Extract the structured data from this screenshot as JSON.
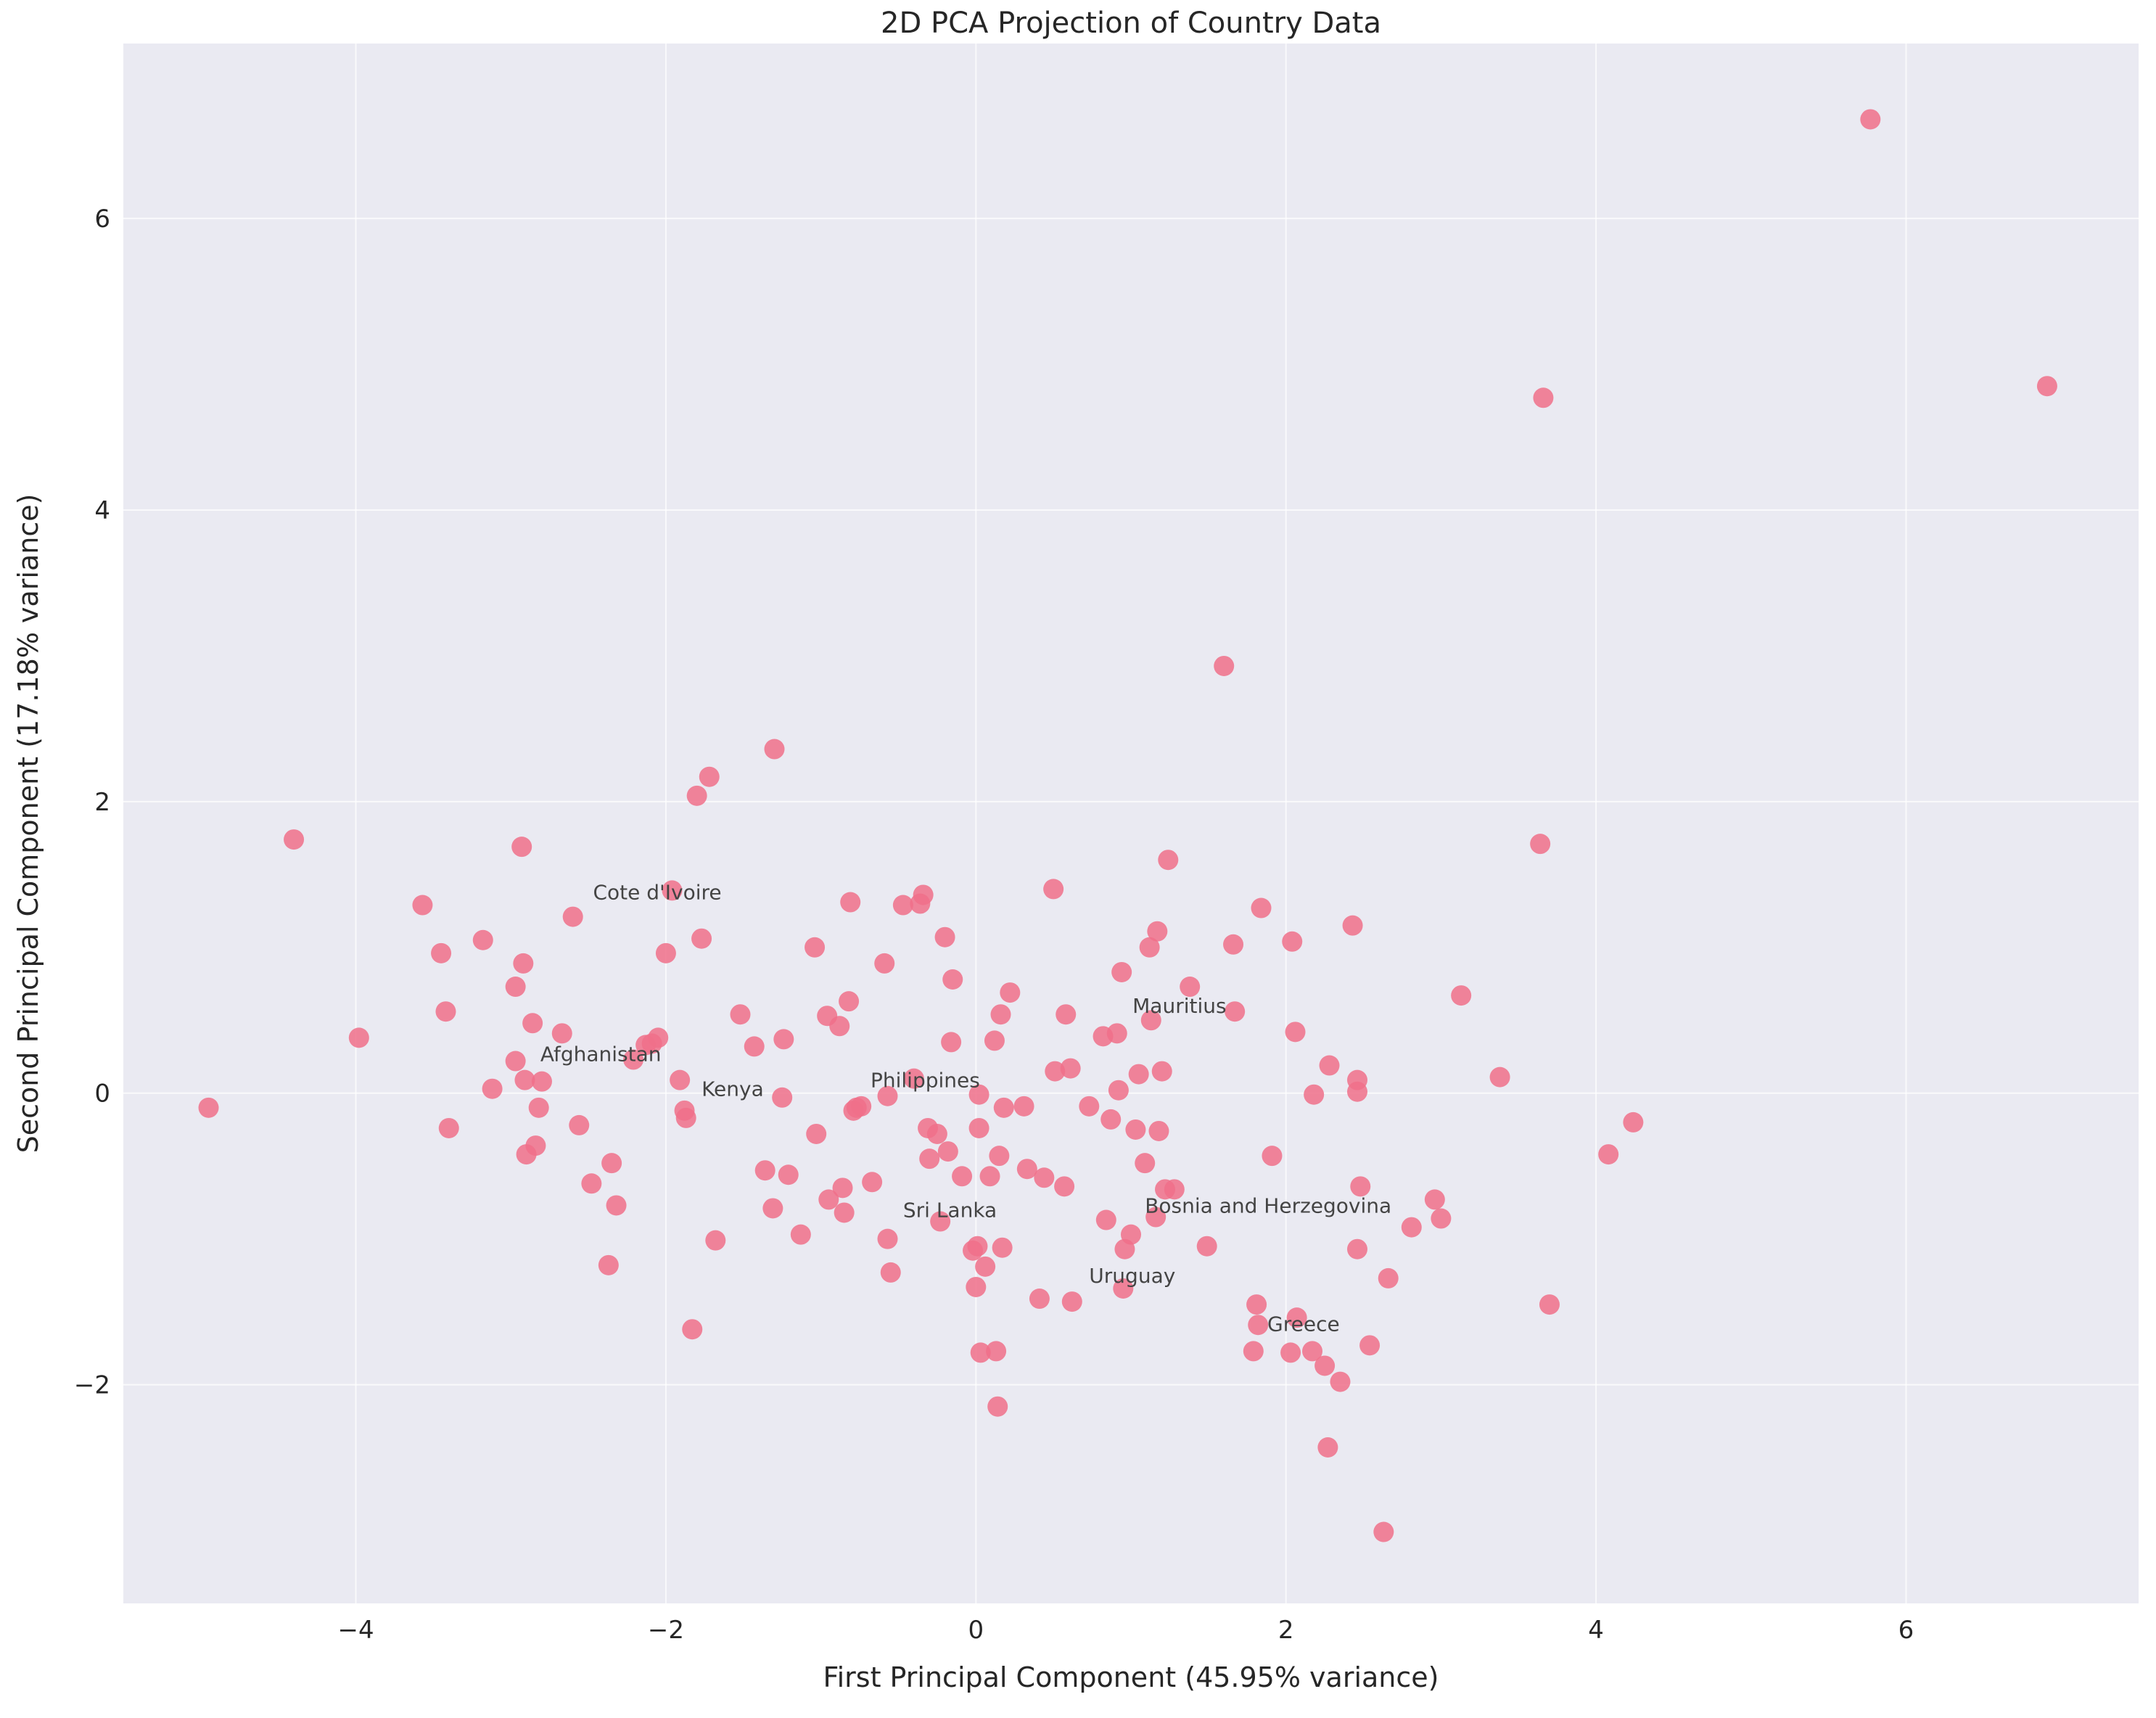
{
  "chart_data": {
    "type": "scatter",
    "title": "2D PCA Projection of Country Data",
    "xlabel": "First Principal Component (45.95% variance)",
    "ylabel": "Second Principal Component (17.18% variance)",
    "xlim": [
      -5.5,
      7.5
    ],
    "ylim": [
      -3.5,
      7.2
    ],
    "xticks": [
      -4,
      -2,
      0,
      2,
      4,
      6
    ],
    "yticks": [
      -2,
      0,
      2,
      4,
      6
    ],
    "grid": true,
    "marker_color": "#f0708a",
    "background": "#eaeaf2",
    "points": [
      [
        -4.95,
        -0.1
      ],
      [
        -4.4,
        1.74
      ],
      [
        -3.98,
        0.38
      ],
      [
        -3.57,
        1.29
      ],
      [
        -3.45,
        0.96
      ],
      [
        -3.42,
        0.56
      ],
      [
        -3.4,
        -0.24
      ],
      [
        -3.18,
        1.05
      ],
      [
        -3.12,
        0.03
      ],
      [
        -2.97,
        0.22
      ],
      [
        -2.97,
        0.73
      ],
      [
        -2.93,
        1.69
      ],
      [
        -2.92,
        0.89
      ],
      [
        -2.91,
        0.09
      ],
      [
        -2.9,
        -0.42
      ],
      [
        -2.86,
        0.48
      ],
      [
        -2.84,
        -0.36
      ],
      [
        -2.82,
        -0.1
      ],
      [
        -2.8,
        0.08
      ],
      [
        -2.67,
        0.41
      ],
      [
        -2.6,
        1.21
      ],
      [
        -2.56,
        -0.22
      ],
      [
        -2.48,
        -0.62
      ],
      [
        -2.37,
        -1.18
      ],
      [
        -2.35,
        -0.48
      ],
      [
        -2.32,
        -0.77
      ],
      [
        -2.21,
        0.23
      ],
      [
        -2.13,
        0.33
      ],
      [
        -2.09,
        0.34
      ],
      [
        -2.05,
        0.38
      ],
      [
        -2.0,
        0.96
      ],
      [
        -1.96,
        1.39
      ],
      [
        -1.91,
        0.09
      ],
      [
        -1.88,
        -0.12
      ],
      [
        -1.87,
        -0.17
      ],
      [
        -1.83,
        -1.62
      ],
      [
        -1.8,
        2.04
      ],
      [
        -1.77,
        1.06
      ],
      [
        -1.72,
        2.17
      ],
      [
        -1.68,
        -1.01
      ],
      [
        -1.52,
        0.54
      ],
      [
        -1.43,
        0.32
      ],
      [
        -1.36,
        -0.53
      ],
      [
        -1.3,
        2.36
      ],
      [
        -1.31,
        -0.79
      ],
      [
        -1.25,
        -0.03
      ],
      [
        -1.24,
        0.37
      ],
      [
        -1.21,
        -0.56
      ],
      [
        -1.13,
        -0.97
      ],
      [
        -1.04,
        1.0
      ],
      [
        -1.03,
        -0.28
      ],
      [
        -0.96,
        0.53
      ],
      [
        -0.95,
        -0.73
      ],
      [
        -0.88,
        0.46
      ],
      [
        -0.86,
        -0.65
      ],
      [
        -0.85,
        -0.82
      ],
      [
        -0.82,
        0.63
      ],
      [
        -0.81,
        1.31
      ],
      [
        -0.79,
        -0.12
      ],
      [
        -0.77,
        -0.1
      ],
      [
        -0.74,
        -0.09
      ],
      [
        -0.67,
        -0.61
      ],
      [
        -0.59,
        0.89
      ],
      [
        -0.57,
        -0.02
      ],
      [
        -0.57,
        -1.0
      ],
      [
        -0.55,
        -1.23
      ],
      [
        -0.47,
        1.29
      ],
      [
        -0.4,
        0.1
      ],
      [
        -0.36,
        1.3
      ],
      [
        -0.34,
        1.36
      ],
      [
        -0.31,
        -0.24
      ],
      [
        -0.3,
        -0.45
      ],
      [
        -0.25,
        -0.28
      ],
      [
        -0.23,
        -0.88
      ],
      [
        -0.2,
        1.07
      ],
      [
        -0.18,
        -0.4
      ],
      [
        -0.16,
        0.35
      ],
      [
        -0.15,
        0.78
      ],
      [
        -0.09,
        -0.57
      ],
      [
        -0.02,
        -1.08
      ],
      [
        0.0,
        -1.33
      ],
      [
        0.01,
        -1.05
      ],
      [
        0.02,
        -0.24
      ],
      [
        0.02,
        -0.01
      ],
      [
        0.03,
        -1.78
      ],
      [
        0.06,
        -1.19
      ],
      [
        0.09,
        -0.57
      ],
      [
        0.12,
        0.36
      ],
      [
        0.13,
        -1.77
      ],
      [
        0.14,
        -2.15
      ],
      [
        0.15,
        -0.43
      ],
      [
        0.16,
        0.54
      ],
      [
        0.17,
        -1.06
      ],
      [
        0.18,
        -0.1
      ],
      [
        0.22,
        0.69
      ],
      [
        0.31,
        -0.09
      ],
      [
        0.33,
        -0.52
      ],
      [
        0.41,
        -1.41
      ],
      [
        0.44,
        -0.58
      ],
      [
        0.5,
        1.4
      ],
      [
        0.51,
        0.15
      ],
      [
        0.57,
        -0.64
      ],
      [
        0.58,
        0.54
      ],
      [
        0.61,
        0.17
      ],
      [
        0.62,
        -1.43
      ],
      [
        0.73,
        -0.09
      ],
      [
        0.82,
        0.39
      ],
      [
        0.84,
        -0.87
      ],
      [
        0.87,
        -0.18
      ],
      [
        0.91,
        0.41
      ],
      [
        0.92,
        0.02
      ],
      [
        0.94,
        0.83
      ],
      [
        0.95,
        -1.34
      ],
      [
        0.96,
        -1.07
      ],
      [
        1.0,
        -0.97
      ],
      [
        1.03,
        -0.25
      ],
      [
        1.05,
        0.13
      ],
      [
        1.09,
        -0.48
      ],
      [
        1.12,
        1.0
      ],
      [
        1.13,
        0.5
      ],
      [
        1.16,
        -0.85
      ],
      [
        1.17,
        1.11
      ],
      [
        1.18,
        -0.26
      ],
      [
        1.2,
        0.15
      ],
      [
        1.22,
        -0.66
      ],
      [
        1.24,
        1.6
      ],
      [
        1.28,
        -0.66
      ],
      [
        1.38,
        0.73
      ],
      [
        1.49,
        -1.05
      ],
      [
        1.6,
        2.93
      ],
      [
        1.66,
        1.02
      ],
      [
        1.67,
        0.56
      ],
      [
        1.79,
        -1.77
      ],
      [
        1.81,
        -1.45
      ],
      [
        1.82,
        -1.59
      ],
      [
        1.84,
        1.27
      ],
      [
        1.91,
        -0.43
      ],
      [
        2.03,
        -1.78
      ],
      [
        2.04,
        1.04
      ],
      [
        2.06,
        0.42
      ],
      [
        2.07,
        -1.54
      ],
      [
        2.17,
        -1.77
      ],
      [
        2.18,
        -0.01
      ],
      [
        2.25,
        -1.87
      ],
      [
        2.27,
        -2.43
      ],
      [
        2.28,
        0.19
      ],
      [
        2.35,
        -1.98
      ],
      [
        2.43,
        1.15
      ],
      [
        2.46,
        -1.07
      ],
      [
        2.46,
        0.01
      ],
      [
        2.46,
        0.09
      ],
      [
        2.48,
        -0.64
      ],
      [
        2.54,
        -1.73
      ],
      [
        2.63,
        -3.01
      ],
      [
        2.66,
        -1.27
      ],
      [
        2.81,
        -0.92
      ],
      [
        2.96,
        -0.73
      ],
      [
        3.0,
        -0.86
      ],
      [
        3.13,
        0.67
      ],
      [
        3.38,
        0.11
      ],
      [
        3.64,
        1.71
      ],
      [
        3.66,
        4.77
      ],
      [
        3.7,
        -1.45
      ],
      [
        4.08,
        -0.42
      ],
      [
        4.24,
        -0.2
      ],
      [
        5.77,
        6.68
      ],
      [
        6.91,
        4.85
      ]
    ],
    "annotations": [
      {
        "label": "Cote d'Ivoire",
        "x": -2.47,
        "y": 1.33
      },
      {
        "label": "Afghanistan",
        "x": -2.81,
        "y": 0.22
      },
      {
        "label": "Kenya",
        "x": -1.77,
        "y": -0.02
      },
      {
        "label": "Philippines",
        "x": -0.68,
        "y": 0.04
      },
      {
        "label": "Mauritius",
        "x": 1.01,
        "y": 0.55
      },
      {
        "label": "Sri Lanka",
        "x": -0.47,
        "y": -0.85
      },
      {
        "label": "Bosnia and Herzegovina",
        "x": 1.09,
        "y": -0.82
      },
      {
        "label": "Uruguay",
        "x": 0.73,
        "y": -1.3
      },
      {
        "label": "Greece",
        "x": 1.88,
        "y": -1.63
      }
    ]
  }
}
